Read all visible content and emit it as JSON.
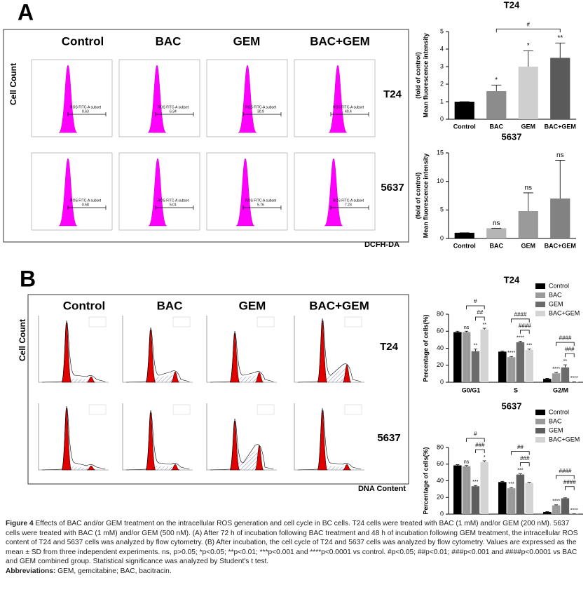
{
  "panel_a": {
    "letter": "A",
    "columns": [
      "Control",
      "BAC",
      "GEM",
      "BAC+GEM"
    ],
    "rows": [
      "T24",
      "5637"
    ],
    "y_label": "Cell Count",
    "x_label": "DCFH-DA",
    "gate_label": "ROS FITC-A subset",
    "gate_values": [
      [
        "0.63",
        "6.34",
        "30.9",
        "40.4"
      ],
      [
        "0.58",
        "5.01",
        "5.76",
        "7.23"
      ]
    ]
  },
  "panel_b": {
    "letter": "B",
    "columns": [
      "Control",
      "BAC",
      "GEM",
      "BAC+GEM"
    ],
    "rows": [
      "T24",
      "5637"
    ],
    "y_label": "Cell Count",
    "x_label": "DNA Content"
  },
  "chart_data": [
    {
      "type": "bar",
      "title": "T24",
      "y_label": [
        "Mean fluorescence intensity",
        "(fold of control)"
      ],
      "categories": [
        "Control",
        "BAC",
        "GEM",
        "BAC+GEM"
      ],
      "values": [
        1,
        1.6,
        3.0,
        3.5
      ],
      "errors": [
        0,
        0.35,
        0.9,
        0.85
      ],
      "colors": [
        "#000000",
        "#8c8c8c",
        "#cfcfcf",
        "#5a5a5a"
      ],
      "labels": [
        null,
        "*",
        "*",
        "**"
      ],
      "comparisons": [
        null,
        "#",
        null,
        null
      ],
      "ylim": [
        0,
        5
      ],
      "yticks": [
        0,
        1,
        2,
        3,
        4,
        5
      ]
    },
    {
      "type": "bar",
      "title": "5637",
      "y_label": [
        "Mean fluorescence intensity",
        "(fold of control)"
      ],
      "categories": [
        "Control",
        "BAC",
        "GEM",
        "BAC+GEM"
      ],
      "values": [
        1,
        1.8,
        4.8,
        7.0
      ],
      "errors": [
        0,
        0,
        3.2,
        6.7
      ],
      "colors": [
        "#000000",
        "#b5b5b5",
        "#9a9a9a",
        "#828282"
      ],
      "labels": [
        null,
        "ns",
        "ns",
        "ns"
      ],
      "ylim": [
        0,
        15
      ],
      "yticks": [
        0,
        5,
        10,
        15
      ]
    },
    {
      "type": "grouped_bar",
      "title": "T24",
      "y_label": [
        "Percentage of cells(%)"
      ],
      "categories": [
        "G0/G1",
        "S",
        "G2/M"
      ],
      "legend": "upper right",
      "ylim": [
        0,
        80
      ],
      "yticks": [
        0,
        20,
        40,
        60,
        80
      ],
      "series": [
        {
          "name": "Control",
          "color": "#000000",
          "values": [
            59,
            36,
            4
          ],
          "errors": [
            1,
            0.8,
            0.6
          ]
        },
        {
          "name": "BAC",
          "color": "#9a9a9a",
          "values": [
            59,
            29.5,
            10.5
          ],
          "errors": [
            1,
            0.8,
            1
          ],
          "labels": [
            "ns",
            "****",
            "****"
          ],
          "comparisons": [
            "#",
            "####",
            "####"
          ]
        },
        {
          "name": "GEM",
          "color": "#6b6b6b",
          "values": [
            36.5,
            47,
            17.5
          ],
          "errors": [
            2.5,
            1,
            3
          ],
          "labels": [
            "**",
            "****",
            "**"
          ],
          "comparisons": [
            "##",
            "####",
            "###"
          ]
        },
        {
          "name": "BAC+GEM",
          "color": "#d4d4d4",
          "values": [
            62,
            38,
            0.5
          ],
          "errors": [
            1.5,
            1,
            0.2
          ],
          "labels": [
            "**",
            "***",
            "****"
          ]
        }
      ]
    },
    {
      "type": "grouped_bar",
      "title": "5637",
      "y_label": [
        "Percentage of cells(%)"
      ],
      "categories": [
        "G0/G1",
        "S",
        "G2/M"
      ],
      "legend": "upper right",
      "ylim": [
        0,
        80
      ],
      "yticks": [
        0,
        20,
        40,
        60,
        80
      ],
      "series": [
        {
          "name": "Control",
          "color": "#000000",
          "values": [
            58.5,
            38.5,
            2.5
          ],
          "errors": [
            0.8,
            0.8,
            0.4
          ]
        },
        {
          "name": "BAC",
          "color": "#9a9a9a",
          "values": [
            57.5,
            31,
            10.5
          ],
          "errors": [
            0.8,
            0.8,
            0.6
          ],
          "labels": [
            "ns",
            "***",
            "****"
          ],
          "comparisons": [
            "#",
            "##",
            "####"
          ]
        },
        {
          "name": "GEM",
          "color": "#5e5e5e",
          "values": [
            33.5,
            47.5,
            19
          ],
          "errors": [
            0.8,
            0.8,
            0.6
          ],
          "labels": [
            "***",
            "***",
            null
          ],
          "comparisons": [
            "###",
            "###",
            "####"
          ]
        },
        {
          "name": "BAC+GEM",
          "color": "#d4d4d4",
          "values": [
            62.5,
            37.5,
            0.3
          ],
          "errors": [
            1.5,
            0.8,
            0.1
          ],
          "labels": [
            "*",
            null,
            "****"
          ]
        }
      ]
    }
  ],
  "caption": {
    "label": "Figure 4",
    "text": "Effects of BAC and/or GEM treatment on the intracellular ROS generation and cell cycle in BC cells. T24 cells were treated with BAC (1 mM) and/or GEM (200 nM). 5637 cells were treated with BAC (1 mM) and/or GEM (500 nM). (A) After 72 h of incubation following BAC treatment and 48 h of incubation following GEM treatment, the intracellular ROS content of T24 and 5637 cells was analyzed by flow cytometry. (B) After incubation, the cell cycle of T24 and 5637 cells was analyzed by flow cytometry. Values are expressed as the mean ± SD from three independent experiments. ns, p>0.05; *p<0.05; **p<0.01; ***p<0.001 and ****p<0.0001 vs control. #p<0.05; ##p<0.01; ###p<0.001 and ####p<0.0001 vs BAC and GEM combined group. Statistical significance was analyzed by Student's t test.",
    "abbrev_label": "Abbreviations:",
    "abbrev_text": "GEM, gemcitabine; BAC, bacitracin."
  }
}
